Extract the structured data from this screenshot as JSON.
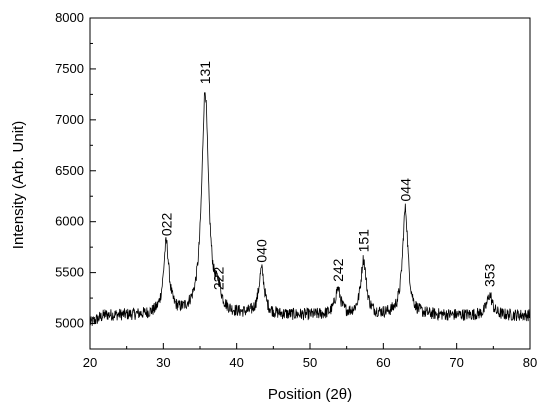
{
  "chart_data": {
    "type": "line",
    "title": "",
    "xlabel": "Position (2θ)",
    "ylabel": "Intensity (Arb. Unit)",
    "xlim": [
      20,
      80
    ],
    "ylim": [
      4750,
      8000
    ],
    "x_ticks": [
      20,
      30,
      40,
      50,
      60,
      70,
      80
    ],
    "y_ticks": [
      5000,
      5500,
      6000,
      6500,
      7000,
      7500,
      8000
    ],
    "grid": false,
    "legend": "none",
    "line_color": "#000000",
    "baseline": 5080,
    "noise_amplitude": 60,
    "peaks": [
      {
        "label": "022",
        "x": 30.4,
        "y": 5780
      },
      {
        "label": "131",
        "x": 35.7,
        "y": 7270
      },
      {
        "label": "222",
        "x": 37.5,
        "y": 5250
      },
      {
        "label": "040",
        "x": 43.4,
        "y": 5520
      },
      {
        "label": "242",
        "x": 53.8,
        "y": 5330
      },
      {
        "label": "151",
        "x": 57.3,
        "y": 5620
      },
      {
        "label": "044",
        "x": 63.0,
        "y": 6120
      },
      {
        "label": "353",
        "x": 74.5,
        "y": 5280
      }
    ]
  }
}
